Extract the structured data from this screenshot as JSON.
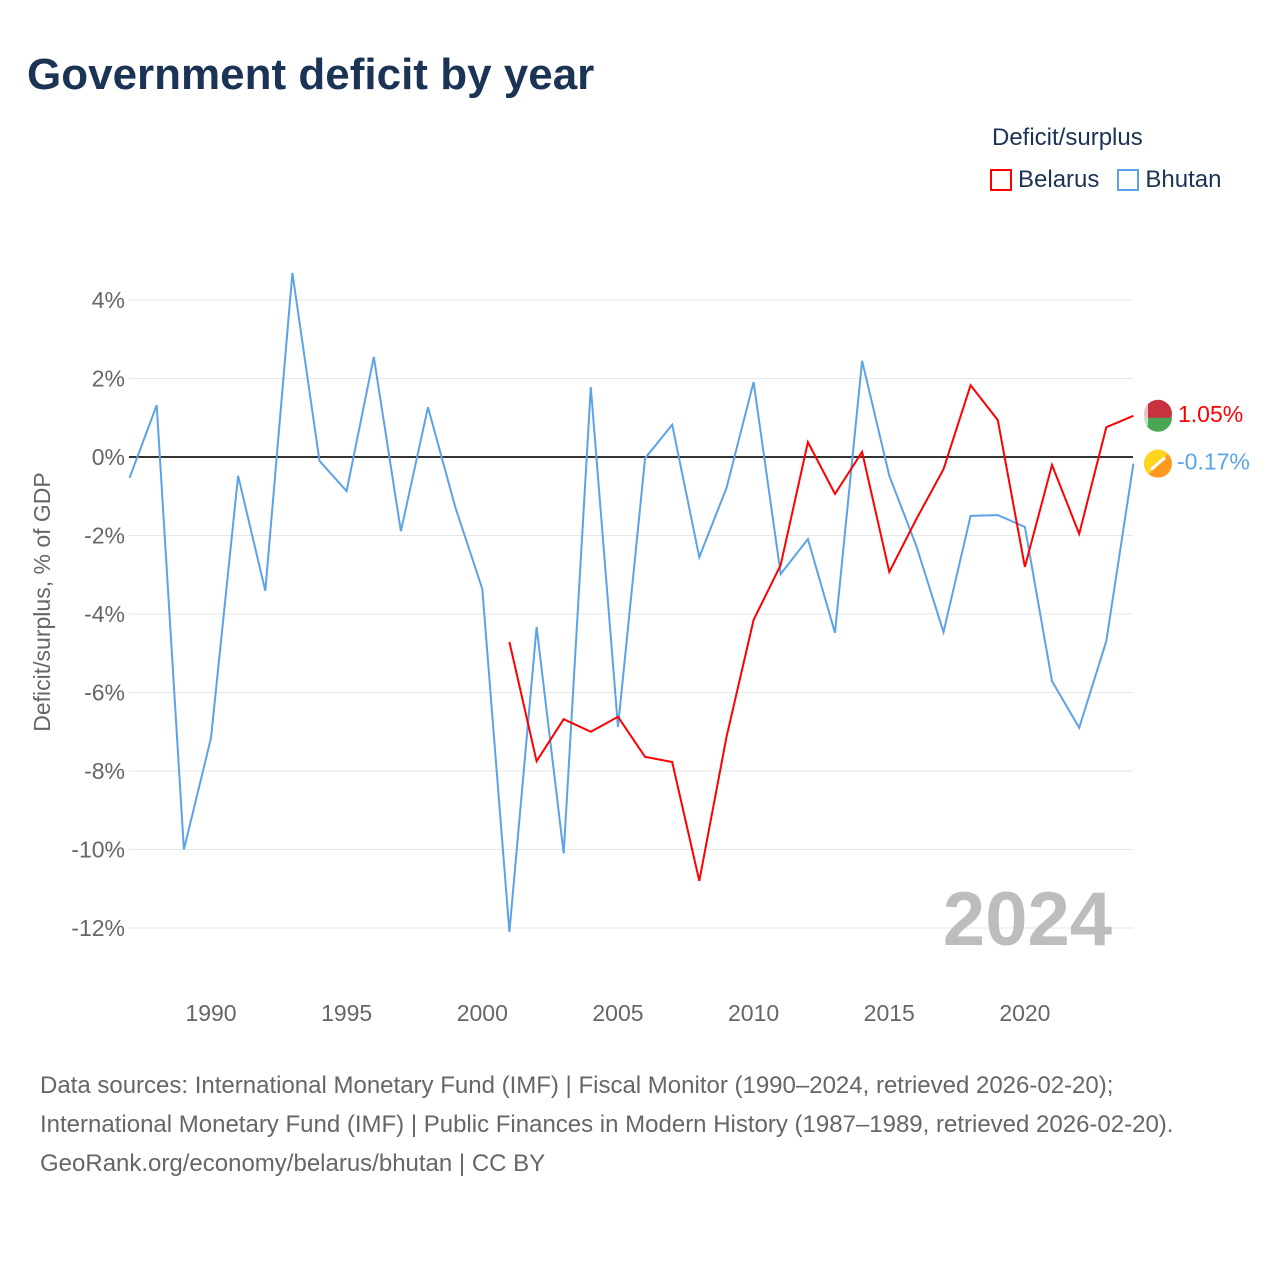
{
  "title": "Government deficit by year",
  "legend": {
    "title": "Deficit/surplus",
    "items": [
      {
        "name": "Belarus",
        "color": "#ff0000"
      },
      {
        "name": "Bhutan",
        "color": "#5ba3e8"
      }
    ]
  },
  "chart_data": {
    "type": "line",
    "title": "Government deficit by year",
    "xlabel": "",
    "ylabel": "Deficit/surplus, % of GDP",
    "xlim": [
      1987,
      2024
    ],
    "ylim": [
      -13,
      5
    ],
    "x_ticks": [
      1990,
      1995,
      2000,
      2005,
      2010,
      2015,
      2020
    ],
    "y_ticks": [
      4,
      2,
      0,
      -2,
      -4,
      -6,
      -8,
      -10,
      -12
    ],
    "y_tick_labels": [
      "4%",
      "2%",
      "0%",
      "-2%",
      "-4%",
      "-6%",
      "-8%",
      "-10%",
      "-12%"
    ],
    "grid": true,
    "legend_position": "top-right",
    "year_watermark": "2024",
    "series": [
      {
        "name": "Belarus",
        "color": "#ff0000",
        "end_label": "1.05%",
        "x": [
          2001,
          2002,
          2003,
          2004,
          2005,
          2006,
          2007,
          2008,
          2009,
          2010,
          2011,
          2012,
          2013,
          2014,
          2015,
          2016,
          2017,
          2018,
          2019,
          2020,
          2021,
          2022,
          2023,
          2024
        ],
        "values": [
          -4.71,
          -7.75,
          -6.68,
          -7.0,
          -6.62,
          -7.64,
          -7.77,
          -10.8,
          -7.13,
          -4.15,
          -2.75,
          0.38,
          -0.94,
          0.13,
          -2.93,
          -1.58,
          -0.31,
          1.83,
          0.94,
          -2.8,
          -0.2,
          -1.96,
          0.76,
          1.05
        ]
      },
      {
        "name": "Bhutan",
        "color": "#5ba3e8",
        "end_label": "-0.17%",
        "x": [
          1987,
          1988,
          1989,
          1990,
          1991,
          1992,
          1993,
          1994,
          1995,
          1996,
          1997,
          1998,
          1999,
          2000,
          2001,
          2002,
          2003,
          2004,
          2005,
          2006,
          2007,
          2008,
          2009,
          2010,
          2011,
          2012,
          2013,
          2014,
          2015,
          2016,
          2017,
          2018,
          2019,
          2020,
          2021,
          2022,
          2023,
          2024
        ],
        "values": [
          -0.53,
          1.32,
          -10.0,
          -7.16,
          -0.48,
          -3.41,
          4.69,
          -0.1,
          -0.87,
          2.55,
          -1.89,
          1.27,
          -1.27,
          -3.36,
          -12.1,
          -4.33,
          -10.1,
          1.78,
          -6.88,
          -0.03,
          0.82,
          -2.55,
          -0.79,
          1.91,
          -2.98,
          -2.09,
          -4.48,
          2.45,
          -0.48,
          -2.27,
          -4.46,
          -1.5,
          -1.48,
          -1.78,
          -5.71,
          -6.9,
          -4.69,
          -0.17
        ]
      }
    ]
  },
  "footer": {
    "sources": "Data sources: International Monetary Fund (IMF) | Fiscal Monitor (1990–2024, retrieved 2026-02-20); International Monetary Fund (IMF) | Public Finances in Modern History (1987–1989, retrieved 2026-02-20).",
    "credit": "GeoRank.org/economy/belarus/bhutan | CC BY"
  }
}
